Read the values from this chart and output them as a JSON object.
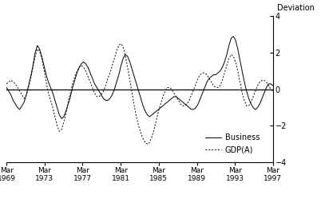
{
  "title": "",
  "ylabel": "Deviation",
  "ylim": [
    -4,
    4
  ],
  "yticks": [
    -4,
    -2,
    0,
    2,
    4
  ],
  "xtick_labels": [
    "Mar\n1969",
    "Mar\n1973",
    "Mar\n1977",
    "Mar\n1981",
    "Mar\n1985",
    "Mar\n1989",
    "Mar\n1993",
    "Mar\n1997"
  ],
  "xtick_positions": [
    0,
    16,
    32,
    48,
    64,
    80,
    96,
    112
  ],
  "legend_labels": [
    "Business",
    "GDP(A)"
  ],
  "background_color": "#ffffff",
  "line_color": "#000000",
  "business": [
    0.1,
    -0.1,
    -0.3,
    -0.6,
    -0.8,
    -1.0,
    -1.1,
    -0.9,
    -0.7,
    -0.3,
    0.2,
    0.7,
    1.3,
    2.0,
    2.4,
    2.2,
    1.8,
    1.3,
    0.8,
    0.4,
    0.1,
    -0.2,
    -0.6,
    -1.0,
    -1.4,
    -1.6,
    -1.5,
    -1.2,
    -0.8,
    -0.4,
    0.1,
    0.5,
    0.9,
    1.2,
    1.4,
    1.5,
    1.4,
    1.2,
    0.9,
    0.6,
    0.3,
    0.1,
    -0.1,
    -0.3,
    -0.5,
    -0.6,
    -0.6,
    -0.5,
    -0.3,
    0.0,
    0.4,
    0.8,
    1.3,
    1.7,
    1.9,
    1.8,
    1.5,
    1.1,
    0.7,
    0.3,
    -0.1,
    -0.5,
    -0.9,
    -1.2,
    -1.4,
    -1.5,
    -1.4,
    -1.3,
    -1.2,
    -1.1,
    -1.0,
    -0.9,
    -0.8,
    -0.7,
    -0.6,
    -0.5,
    -0.4,
    -0.4,
    -0.5,
    -0.6,
    -0.7,
    -0.8,
    -0.9,
    -1.0,
    -1.1,
    -1.1,
    -1.0,
    -0.8,
    -0.5,
    -0.2,
    0.1,
    0.4,
    0.6,
    0.7,
    0.8,
    0.8,
    0.9,
    1.0,
    1.2,
    1.5,
    1.9,
    2.4,
    2.8,
    2.9,
    2.7,
    2.2,
    1.6,
    1.0,
    0.4,
    -0.1,
    -0.5,
    -0.8,
    -1.0,
    -1.1,
    -1.0,
    -0.8,
    -0.5,
    -0.2,
    0.1,
    0.3,
    0.3,
    0.2
  ],
  "gdpa": [
    0.3,
    0.4,
    0.5,
    0.4,
    0.3,
    0.1,
    -0.1,
    -0.3,
    -0.5,
    -0.3,
    0.1,
    0.6,
    1.2,
    1.8,
    2.2,
    2.1,
    1.7,
    1.1,
    0.4,
    -0.2,
    -0.6,
    -1.0,
    -1.5,
    -2.0,
    -2.3,
    -2.2,
    -1.8,
    -1.3,
    -0.7,
    -0.2,
    0.3,
    0.7,
    1.0,
    1.2,
    1.3,
    1.2,
    1.0,
    0.7,
    0.4,
    0.1,
    -0.2,
    -0.4,
    -0.4,
    -0.3,
    -0.1,
    0.2,
    0.6,
    0.9,
    1.3,
    1.7,
    2.1,
    2.4,
    2.5,
    2.3,
    1.8,
    1.2,
    0.5,
    -0.2,
    -0.9,
    -1.5,
    -2.0,
    -2.4,
    -2.7,
    -2.9,
    -3.0,
    -2.9,
    -2.6,
    -2.2,
    -1.7,
    -1.2,
    -0.8,
    -0.4,
    -0.1,
    0.1,
    0.1,
    0.0,
    -0.2,
    -0.4,
    -0.6,
    -0.8,
    -0.9,
    -0.9,
    -0.8,
    -0.6,
    -0.3,
    0.0,
    0.3,
    0.6,
    0.8,
    0.9,
    0.9,
    0.8,
    0.6,
    0.4,
    0.2,
    0.1,
    0.1,
    0.2,
    0.5,
    0.9,
    1.3,
    1.7,
    1.9,
    1.8,
    1.5,
    1.0,
    0.4,
    -0.2,
    -0.6,
    -0.9,
    -0.9,
    -0.7,
    -0.4,
    -0.1,
    0.2,
    0.4,
    0.5,
    0.5,
    0.4,
    0.2,
    0.0,
    -0.1
  ]
}
